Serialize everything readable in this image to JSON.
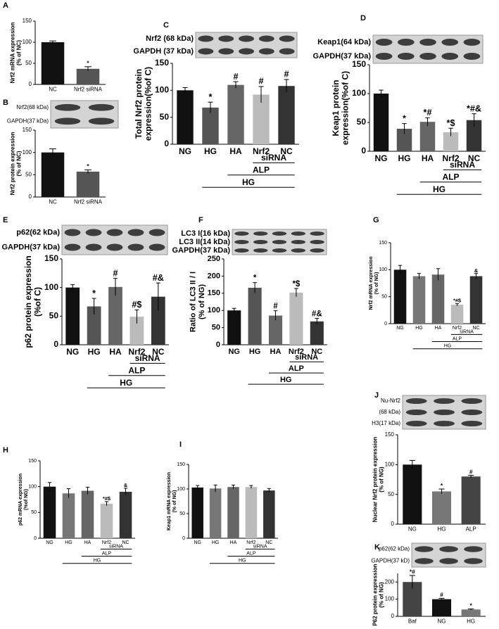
{
  "chart_data": [
    {
      "panel": "A",
      "type": "bar",
      "ylabel": [
        "Nrf2 mRNA expression",
        "(% of NC)"
      ],
      "categories": [
        "NC",
        "Nrf2 siRNA"
      ],
      "colors": [
        "#111111",
        "#555555"
      ],
      "values": [
        100,
        37
      ],
      "errors": [
        3,
        5
      ],
      "annotations": [
        null,
        "*"
      ],
      "ylim": [
        0,
        150
      ],
      "yticks": [
        0,
        50,
        100,
        150
      ]
    },
    {
      "panel": "B",
      "type": "bar",
      "blot_labels": [
        "Nrf2(68 kDa)",
        "GAPDH(37 kDa)"
      ],
      "ylabel": [
        "Nrf2 protein expression",
        "(% of NC)"
      ],
      "categories": [
        "NC",
        "Nrf2  siRNA"
      ],
      "colors": [
        "#111111",
        "#555555"
      ],
      "values": [
        100,
        57
      ],
      "errors": [
        8,
        4
      ],
      "annotations": [
        null,
        "*"
      ],
      "ylim": [
        0,
        150
      ],
      "yticks": [
        0,
        50,
        100,
        150
      ]
    },
    {
      "panel": "C",
      "type": "bar",
      "blot_labels": [
        "Nrf2 (68 kDa)",
        "GAPDH (37 kDa)"
      ],
      "ylabel": [
        "Total Nrf2 protein",
        "expression(%of C)"
      ],
      "categories": [
        "NG",
        "HG",
        "HA",
        "Nrf2",
        "NC"
      ],
      "colors": [
        "#111111",
        "#555555",
        "#666666",
        "#bbbbbb",
        "#333333"
      ],
      "values": [
        100,
        68,
        110,
        92,
        108
      ],
      "errors": [
        5,
        10,
        6,
        15,
        12
      ],
      "annotations": [
        null,
        "*",
        "#",
        "#",
        "#"
      ],
      "groups": [
        {
          "label": "siRNA",
          "span": [
            "Nrf2",
            "NC"
          ]
        },
        {
          "label": "ALP",
          "span": [
            "HA",
            "NC"
          ]
        },
        {
          "label": "HG",
          "span": [
            "HG",
            "NC"
          ]
        }
      ],
      "ylim": [
        0,
        150
      ],
      "yticks": [
        0,
        50,
        100,
        150
      ]
    },
    {
      "panel": "D",
      "type": "bar",
      "blot_labels": [
        "Keap1(64 kDa)",
        "GAPDH(37 kDa)"
      ],
      "ylabel": [
        "Keap1 protein",
        "expression(%of C)"
      ],
      "categories": [
        "NG",
        "HG",
        "HA",
        "Nrf2",
        "NC"
      ],
      "colors": [
        "#111111",
        "#555555",
        "#666666",
        "#bbbbbb",
        "#333333"
      ],
      "values": [
        100,
        39,
        51,
        33,
        54
      ],
      "errors": [
        6,
        9,
        7,
        7,
        11
      ],
      "annotations": [
        null,
        "*",
        "*#",
        "*$",
        "*#&"
      ],
      "groups": [
        {
          "label": "siRNA",
          "span": [
            "Nrf2",
            "NC"
          ]
        },
        {
          "label": "ALP",
          "span": [
            "HA",
            "NC"
          ]
        },
        {
          "label": "HG",
          "span": [
            "HG",
            "NC"
          ]
        }
      ],
      "ylim": [
        0,
        150
      ],
      "yticks": [
        0,
        50,
        100,
        150
      ]
    },
    {
      "panel": "E",
      "type": "bar",
      "blot_labels": [
        "p62(62 kDa)",
        "GAPDH(37 kDa)"
      ],
      "ylabel": [
        "p62 protein expression",
        "(%of C)"
      ],
      "categories": [
        "NG",
        "HG",
        "HA",
        "Nrf2",
        "NC"
      ],
      "colors": [
        "#111111",
        "#555555",
        "#666666",
        "#bbbbbb",
        "#333333"
      ],
      "values": [
        100,
        67,
        101,
        49,
        84
      ],
      "errors": [
        5,
        14,
        15,
        12,
        24
      ],
      "annotations": [
        null,
        "*",
        "#",
        "#$",
        "#&"
      ],
      "groups": [
        {
          "label": "siRNA",
          "span": [
            "Nrf2",
            "NC"
          ]
        },
        {
          "label": "ALP",
          "span": [
            "HA",
            "NC"
          ]
        },
        {
          "label": "HG",
          "span": [
            "HG",
            "NC"
          ]
        }
      ],
      "ylim": [
        0,
        150
      ],
      "yticks": [
        0,
        50,
        100,
        150
      ]
    },
    {
      "panel": "F",
      "type": "bar",
      "blot_labels": [
        "LC3 I(16 kDa)",
        "LC3 II(14 kDa)",
        "GAPDH(37 kDa)"
      ],
      "ylabel": [
        "Ratio of LC3 II / I",
        "(% of NG)"
      ],
      "categories": [
        "NG",
        "HG",
        "HA",
        "Nrf2",
        "NC"
      ],
      "colors": [
        "#111111",
        "#555555",
        "#666666",
        "#bbbbbb",
        "#333333"
      ],
      "values": [
        100,
        166,
        85,
        152,
        68
      ],
      "errors": [
        6,
        15,
        14,
        12,
        9
      ],
      "annotations": [
        null,
        "*",
        "#",
        "*$",
        "#&"
      ],
      "groups": [
        {
          "label": "siRNA",
          "span": [
            "Nrf2",
            "NC"
          ]
        },
        {
          "label": "ALP",
          "span": [
            "HA",
            "NC"
          ]
        },
        {
          "label": "HG",
          "span": [
            "HG",
            "NC"
          ]
        }
      ],
      "ylim": [
        0,
        250
      ],
      "yticks": [
        0,
        50,
        100,
        150,
        200,
        250
      ]
    },
    {
      "panel": "G",
      "type": "bar",
      "ylabel": [
        "Nrf2 mRNA expression",
        "(% of NG)"
      ],
      "categories": [
        "NG",
        "HG",
        "HA",
        "Nrf2",
        "NC"
      ],
      "colors": [
        "#111111",
        "#777777",
        "#666666",
        "#bbbbbb",
        "#333333"
      ],
      "values": [
        100,
        88,
        91,
        35,
        88
      ],
      "errors": [
        8,
        5,
        11,
        2,
        5
      ],
      "annotations": [
        null,
        null,
        null,
        "*#$",
        "&"
      ],
      "groups": [
        {
          "label": "siRNA",
          "span": [
            "Nrf2",
            "NC"
          ]
        },
        {
          "label": "ALP",
          "span": [
            "HA",
            "NC"
          ]
        },
        {
          "label": "HG",
          "span": [
            "HG",
            "NC"
          ]
        }
      ],
      "ylim": [
        0,
        150
      ],
      "yticks": [
        0,
        50,
        100,
        150
      ]
    },
    {
      "panel": "H",
      "type": "bar",
      "ylabel": [
        "p62 mRNA expression",
        "(%of NG)"
      ],
      "categories": [
        "NG",
        "HG",
        "HA",
        "Nrf2",
        "NC"
      ],
      "colors": [
        "#111111",
        "#777777",
        "#666666",
        "#bbbbbb",
        "#333333"
      ],
      "values": [
        100,
        87,
        92,
        67,
        90
      ],
      "errors": [
        8,
        9,
        7,
        4,
        7
      ],
      "annotations": [
        null,
        null,
        null,
        "*#$",
        "&"
      ],
      "groups": [
        {
          "label": "siRNA",
          "span": [
            "Nrf2",
            "NC"
          ]
        },
        {
          "label": "ALP",
          "span": [
            "HA",
            "NC"
          ]
        },
        {
          "label": "HG",
          "span": [
            "HG",
            "NC"
          ]
        }
      ],
      "ylim": [
        0,
        150
      ],
      "yticks": [
        0,
        50,
        100,
        150
      ]
    },
    {
      "panel": "I",
      "type": "bar",
      "ylabel": [
        "Keap1 mRNA expression",
        "(% of NG)"
      ],
      "categories": [
        "NG",
        "HG",
        "HA",
        "Nrf2",
        "NC"
      ],
      "colors": [
        "#111111",
        "#777777",
        "#666666",
        "#bbbbbb",
        "#333333"
      ],
      "values": [
        103,
        101,
        104,
        104,
        97
      ],
      "errors": [
        4,
        7,
        4,
        3,
        4
      ],
      "annotations": [
        null,
        null,
        null,
        null,
        null
      ],
      "groups": [
        {
          "label": "siRNA",
          "span": [
            "Nrf2",
            "NC"
          ]
        },
        {
          "label": "ALP",
          "span": [
            "HA",
            "NC"
          ]
        },
        {
          "label": "HG",
          "span": [
            "HG",
            "NC"
          ]
        }
      ],
      "ylim": [
        0,
        150
      ],
      "yticks": [
        0,
        50,
        100,
        150
      ]
    },
    {
      "panel": "J",
      "type": "bar",
      "blot_labels": [
        "Nu-Nrf2",
        "(68 kDa)",
        "H3(17 kDa)"
      ],
      "ylabel": [
        "Nuclear Nrf2 protein expression",
        "(% of NG)"
      ],
      "categories": [
        "NG",
        "HG",
        "ALP"
      ],
      "colors": [
        "#111111",
        "#777777",
        "#444444"
      ],
      "values": [
        100,
        55,
        80
      ],
      "errors": [
        7,
        4,
        2
      ],
      "annotations": [
        null,
        "*",
        "#"
      ],
      "ylim": [
        0,
        150
      ],
      "yticks": [
        0,
        50,
        100,
        150
      ]
    },
    {
      "panel": "K",
      "type": "bar",
      "blot_labels": [
        "p62(62 kDa)",
        "GAPDH(37 kD)"
      ],
      "ylabel": [
        "P62 protein expression",
        "(% of NG)"
      ],
      "categories": [
        "Baf",
        "NG",
        "HG"
      ],
      "colors": [
        "#444444",
        "#111111",
        "#777777"
      ],
      "values": [
        200,
        100,
        40
      ],
      "errors": [
        38,
        5,
        3
      ],
      "annotations": [
        "*#",
        "#",
        "*"
      ],
      "ylim": [
        0,
        250
      ],
      "yticks": [
        0,
        100,
        200
      ]
    }
  ]
}
